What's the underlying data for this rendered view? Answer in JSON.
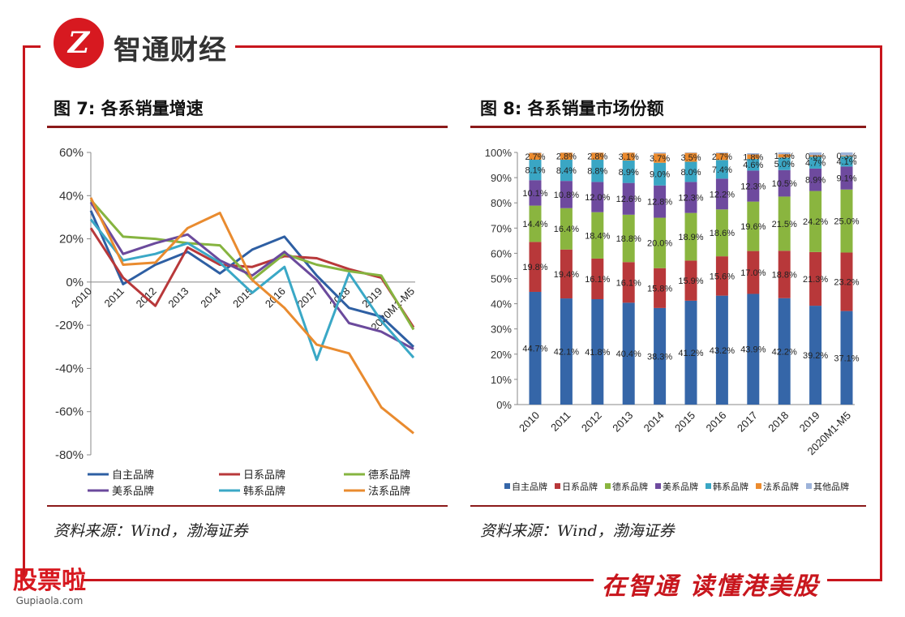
{
  "brand": {
    "logo_char": "Z",
    "name": "智通财经",
    "slogan": "在智通  读懂港美股"
  },
  "watermark": {
    "main": "股票啦",
    "sub": "Gupiaola.com"
  },
  "fig7": {
    "title": "图 7:  各系销量增速",
    "source": "资料来源：Wind，渤海证券"
  },
  "fig8": {
    "title": "图 8:  各系销量市场份额",
    "source": "资料来源：Wind，渤海证券"
  },
  "chart_data": [
    {
      "type": "line",
      "title": "图 7:  各系销量增速",
      "categories": [
        "2010",
        "2011",
        "2012",
        "2013",
        "2014",
        "2015",
        "2016",
        "2017",
        "2018",
        "2019",
        "2020M1-M5"
      ],
      "ylim": [
        -80,
        60
      ],
      "yticks": [
        "60%",
        "40%",
        "20%",
        "0%",
        "-20%",
        "-40%",
        "-60%",
        "-80%"
      ],
      "legend_position": "bottom",
      "series": [
        {
          "name": "自主品牌",
          "color": "#2e5fa3",
          "values": [
            33,
            -1,
            8,
            14,
            4,
            15,
            21,
            3,
            -12,
            -16,
            -30
          ]
        },
        {
          "name": "日系品牌",
          "color": "#b8383a",
          "values": [
            25,
            2,
            -11,
            16,
            8,
            7,
            12,
            11,
            6,
            2,
            -21
          ]
        },
        {
          "name": "德系品牌",
          "color": "#86b440",
          "values": [
            38,
            21,
            20,
            18,
            17,
            1,
            13,
            8,
            5,
            3,
            -22
          ]
        },
        {
          "name": "美系品牌",
          "color": "#6b4a9c",
          "values": [
            37,
            13,
            18,
            22,
            10,
            3,
            14,
            1,
            -19,
            -23,
            -31
          ]
        },
        {
          "name": "韩系品牌",
          "color": "#3aa8c6",
          "values": [
            29,
            10,
            13,
            18,
            9,
            -5,
            7,
            -36,
            4,
            -18,
            -35
          ]
        },
        {
          "name": "法系品牌",
          "color": "#e98b2f",
          "values": [
            39,
            8,
            9,
            25,
            32,
            1,
            -12,
            -29,
            -33,
            -58,
            -70
          ]
        }
      ]
    },
    {
      "type": "bar",
      "stacked": true,
      "title": "图 8:  各系销量市场份额",
      "categories": [
        "2010",
        "2011",
        "2012",
        "2013",
        "2014",
        "2015",
        "2016",
        "2017",
        "2018",
        "2019",
        "2020M1-M5"
      ],
      "ylim": [
        0,
        100
      ],
      "yticks": [
        "0%",
        "10%",
        "20%",
        "30%",
        "40%",
        "50%",
        "60%",
        "70%",
        "80%",
        "90%",
        "100%"
      ],
      "legend_position": "bottom",
      "series": [
        {
          "name": "自主品牌",
          "color": "#3566a8",
          "values": [
            44.7,
            42.1,
            41.8,
            40.4,
            38.3,
            41.2,
            43.2,
            43.9,
            42.2,
            39.2,
            37.1
          ],
          "labels": [
            "44.7%",
            "42.1%",
            "41.8%",
            "40.4%",
            "38.3%",
            "41.2%",
            "43.2%",
            "43.9%",
            "42.2%",
            "39.2%",
            "37.1%"
          ]
        },
        {
          "name": "日系品牌",
          "color": "#b8383a",
          "values": [
            19.8,
            19.4,
            16.1,
            16.1,
            15.8,
            15.9,
            15.6,
            17.0,
            18.8,
            21.3,
            23.2
          ],
          "labels": [
            "19.8%",
            "19.4%",
            "16.1%",
            "16.1%",
            "15.8%",
            "15.9%",
            "15.6%",
            "17.0%",
            "18.8%",
            "21.3%",
            "23.2%"
          ]
        },
        {
          "name": "德系品牌",
          "color": "#8ab53f",
          "values": [
            14.4,
            16.4,
            18.4,
            18.8,
            20.0,
            18.9,
            18.6,
            19.6,
            21.5,
            24.2,
            25.0
          ],
          "labels": [
            "14.4%",
            "16.4%",
            "18.4%",
            "18.8%",
            "20.0%",
            "18.9%",
            "18.6%",
            "19.6%",
            "21.5%",
            "24.2%",
            "25.0%"
          ]
        },
        {
          "name": "美系品牌",
          "color": "#6e4a9e",
          "values": [
            10.1,
            10.8,
            12.0,
            12.6,
            12.8,
            12.3,
            12.2,
            12.3,
            10.5,
            8.9,
            9.1
          ],
          "labels": [
            "10.1%",
            "10.8%",
            "12.0%",
            "12.6%",
            "12.8%",
            "12.3%",
            "12.2%",
            "12.3%",
            "10.5%",
            "8.9%",
            "9.1%"
          ]
        },
        {
          "name": "韩系品牌",
          "color": "#3aa6c4",
          "values": [
            8.1,
            8.4,
            8.8,
            8.9,
            9.0,
            8.0,
            7.4,
            4.6,
            5.0,
            4.7,
            4.1
          ],
          "labels": [
            "8.1%",
            "8.4%",
            "8.8%",
            "8.9%",
            "9.0%",
            "8.0%",
            "7.4%",
            "4.6%",
            "5.0%",
            "4.7%",
            "4.1%"
          ]
        },
        {
          "name": "法系品牌",
          "color": "#ec8b2e",
          "values": [
            2.7,
            2.8,
            2.8,
            3.1,
            3.7,
            3.5,
            2.7,
            1.8,
            1.3,
            0.6,
            0.3
          ],
          "labels": [
            "2.7%",
            "2.8%",
            "2.8%",
            "3.1%",
            "3.7%",
            "3.5%",
            "2.7%",
            "1.8%",
            "1.3%",
            "0.6%",
            "0.3%"
          ]
        },
        {
          "name": "其他品牌",
          "color": "#9db3d9",
          "values": [
            0.2,
            0.1,
            0.1,
            0.1,
            0.4,
            0.2,
            0.3,
            0.5,
            0.7,
            1.1,
            1.2
          ],
          "labels": []
        }
      ]
    }
  ]
}
